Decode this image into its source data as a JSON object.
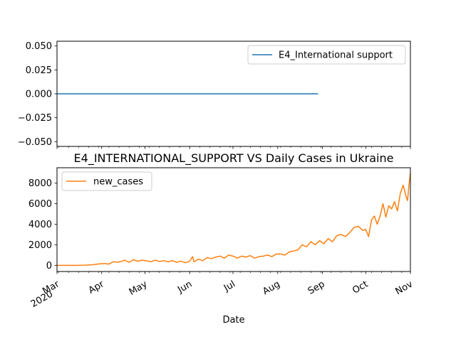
{
  "chart_data": [
    {
      "type": "line",
      "title": "",
      "xlabel": "",
      "ylabel": "",
      "ylim": [
        -0.055,
        0.055
      ],
      "yticks": [
        -0.05,
        -0.025,
        0.0,
        0.025,
        0.05
      ],
      "ytick_labels": [
        "−0.050",
        "−0.025",
        "0.000",
        "0.025",
        "0.050"
      ],
      "x_range": [
        "2020-03-01",
        "2020-11-01"
      ],
      "legend": "top-right",
      "grid": false,
      "series": [
        {
          "name": "E4_International support",
          "color": "#1f77b4",
          "x": [
            "2020-03-01",
            "2020-08-29",
            "2020-08-30",
            "2020-11-01"
          ],
          "values": [
            0,
            0,
            null,
            0
          ]
        }
      ]
    },
    {
      "type": "line",
      "title": "E4_INTERNATIONAL_SUPPORT VS Daily Cases in Ukraine",
      "xlabel": "Date",
      "ylabel": "",
      "ylim": [
        -600,
        9500
      ],
      "yticks": [
        0,
        2000,
        4000,
        6000,
        8000
      ],
      "ytick_labels": [
        "0",
        "2000",
        "4000",
        "6000",
        "8000"
      ],
      "x_range": [
        "2020-03-01",
        "2020-11-01"
      ],
      "xtick_dates": [
        "2020-03-01",
        "2020-04-01",
        "2020-05-01",
        "2020-06-01",
        "2020-07-01",
        "2020-08-01",
        "2020-09-01",
        "2020-10-01",
        "2020-11-01"
      ],
      "xtick_labels": [
        "Mar\n2020",
        "Apr",
        "May",
        "Jun",
        "Jul",
        "Aug",
        "Sep",
        "Oct",
        "Nov"
      ],
      "legend": "top-left",
      "grid": false,
      "series": [
        {
          "name": "new_cases",
          "color": "#ff7f0e",
          "x": [
            "2020-03-01",
            "2020-03-05",
            "2020-03-10",
            "2020-03-15",
            "2020-03-20",
            "2020-03-25",
            "2020-03-28",
            "2020-03-31",
            "2020-04-03",
            "2020-04-06",
            "2020-04-09",
            "2020-04-12",
            "2020-04-15",
            "2020-04-17",
            "2020-04-20",
            "2020-04-23",
            "2020-04-26",
            "2020-04-29",
            "2020-05-02",
            "2020-05-05",
            "2020-05-08",
            "2020-05-11",
            "2020-05-14",
            "2020-05-17",
            "2020-05-20",
            "2020-05-23",
            "2020-05-26",
            "2020-05-29",
            "2020-06-01",
            "2020-06-03",
            "2020-06-04",
            "2020-06-07",
            "2020-06-10",
            "2020-06-13",
            "2020-06-16",
            "2020-06-19",
            "2020-06-22",
            "2020-06-25",
            "2020-06-28",
            "2020-07-01",
            "2020-07-04",
            "2020-07-07",
            "2020-07-10",
            "2020-07-13",
            "2020-07-16",
            "2020-07-19",
            "2020-07-22",
            "2020-07-25",
            "2020-07-28",
            "2020-07-31",
            "2020-08-03",
            "2020-08-06",
            "2020-08-09",
            "2020-08-12",
            "2020-08-15",
            "2020-08-18",
            "2020-08-21",
            "2020-08-24",
            "2020-08-27",
            "2020-08-30",
            "2020-09-02",
            "2020-09-05",
            "2020-09-08",
            "2020-09-11",
            "2020-09-14",
            "2020-09-17",
            "2020-09-20",
            "2020-09-23",
            "2020-09-26",
            "2020-09-29",
            "2020-10-01",
            "2020-10-03",
            "2020-10-05",
            "2020-10-07",
            "2020-10-09",
            "2020-10-11",
            "2020-10-13",
            "2020-10-15",
            "2020-10-17",
            "2020-10-19",
            "2020-10-21",
            "2020-10-23",
            "2020-10-25",
            "2020-10-27",
            "2020-10-29",
            "2020-10-30",
            "2020-10-31",
            "2020-11-01"
          ],
          "values": [
            0,
            0,
            0,
            0,
            10,
            50,
            100,
            150,
            180,
            120,
            350,
            300,
            400,
            500,
            300,
            550,
            400,
            500,
            450,
            350,
            500,
            380,
            450,
            350,
            450,
            300,
            400,
            250,
            400,
            850,
            350,
            600,
            450,
            750,
            650,
            800,
            900,
            700,
            1000,
            900,
            700,
            900,
            800,
            950,
            700,
            850,
            900,
            1000,
            850,
            1100,
            1100,
            1000,
            1300,
            1400,
            1500,
            2000,
            1800,
            2300,
            2000,
            2400,
            2100,
            2600,
            2300,
            2900,
            3000,
            2800,
            3200,
            3700,
            3800,
            3400,
            3500,
            2800,
            4400,
            4800,
            4000,
            4800,
            6000,
            4700,
            5800,
            5500,
            6200,
            5300,
            7000,
            7800,
            6700,
            6300,
            7800,
            9000
          ]
        }
      ]
    }
  ]
}
